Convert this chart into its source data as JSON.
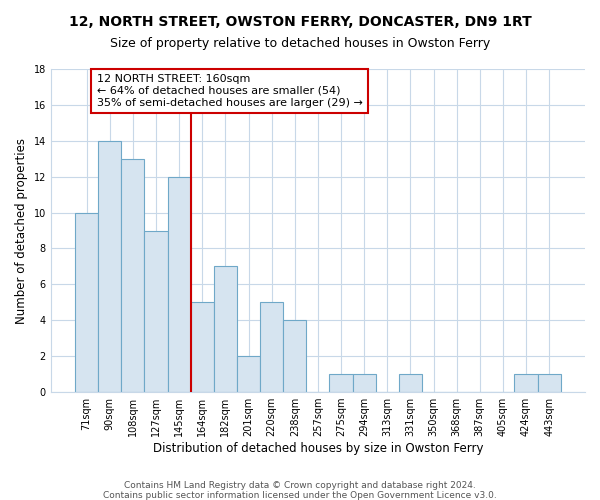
{
  "title": "12, NORTH STREET, OWSTON FERRY, DONCASTER, DN9 1RT",
  "subtitle": "Size of property relative to detached houses in Owston Ferry",
  "xlabel": "Distribution of detached houses by size in Owston Ferry",
  "ylabel": "Number of detached properties",
  "bar_labels": [
    "71sqm",
    "90sqm",
    "108sqm",
    "127sqm",
    "145sqm",
    "164sqm",
    "182sqm",
    "201sqm",
    "220sqm",
    "238sqm",
    "257sqm",
    "275sqm",
    "294sqm",
    "313sqm",
    "331sqm",
    "350sqm",
    "368sqm",
    "387sqm",
    "405sqm",
    "424sqm",
    "443sqm"
  ],
  "bar_values": [
    10,
    14,
    13,
    9,
    12,
    5,
    7,
    2,
    5,
    4,
    0,
    1,
    1,
    0,
    1,
    0,
    0,
    0,
    0,
    1,
    1
  ],
  "bar_color": "#d6e4f0",
  "bar_edge_color": "#6fa8c8",
  "highlight_line_index": 5,
  "highlight_line_color": "#cc0000",
  "annotation_text_line1": "12 NORTH STREET: 160sqm",
  "annotation_text_line2": "← 64% of detached houses are smaller (54)",
  "annotation_text_line3": "35% of semi-detached houses are larger (29) →",
  "ylim": [
    0,
    18
  ],
  "yticks": [
    0,
    2,
    4,
    6,
    8,
    10,
    12,
    14,
    16,
    18
  ],
  "grid_color": "#c8d8e8",
  "bg_color": "#ffffff",
  "footer_line1": "Contains HM Land Registry data © Crown copyright and database right 2024.",
  "footer_line2": "Contains public sector information licensed under the Open Government Licence v3.0.",
  "title_fontsize": 10,
  "subtitle_fontsize": 9,
  "annotation_fontsize": 8,
  "tick_fontsize": 7,
  "ylabel_fontsize": 8.5,
  "xlabel_fontsize": 8.5,
  "footer_fontsize": 6.5
}
